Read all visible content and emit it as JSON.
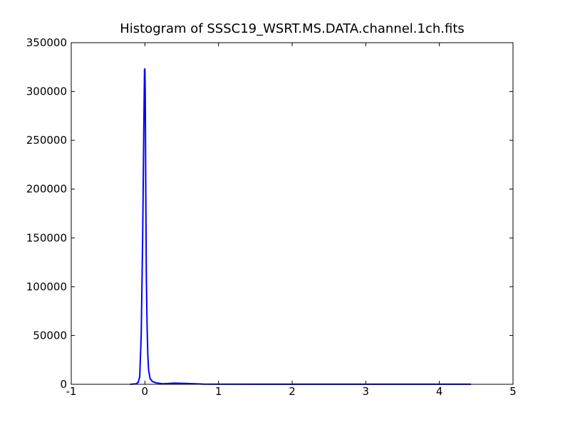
{
  "chart_data": {
    "type": "line",
    "title": "Histogram of SSSC19_WSRT.MS.DATA.channel.1ch.fits",
    "x": [
      -0.2,
      -0.12,
      -0.09,
      -0.07,
      -0.05,
      -0.03,
      -0.015,
      -0.005,
      0.0,
      0.005,
      0.012,
      0.02,
      0.03,
      0.04,
      0.05,
      0.07,
      0.1,
      0.15,
      0.25,
      0.4,
      0.55,
      0.8,
      1.5,
      3.0,
      4.43
    ],
    "values": [
      0,
      500,
      2000,
      8000,
      50000,
      150000,
      260000,
      323000,
      323000,
      300000,
      200000,
      110000,
      60000,
      30000,
      15000,
      6000,
      3000,
      1500,
      500,
      1200,
      900,
      200,
      100,
      100,
      100
    ],
    "color": "#0000ff",
    "xlim": [
      -1,
      5
    ],
    "xticks": [
      -1,
      0,
      1,
      2,
      3,
      4,
      5
    ],
    "ylim": [
      0,
      350000
    ],
    "yticks": [
      0,
      50000,
      100000,
      150000,
      200000,
      250000,
      300000,
      350000
    ],
    "grid": false
  }
}
